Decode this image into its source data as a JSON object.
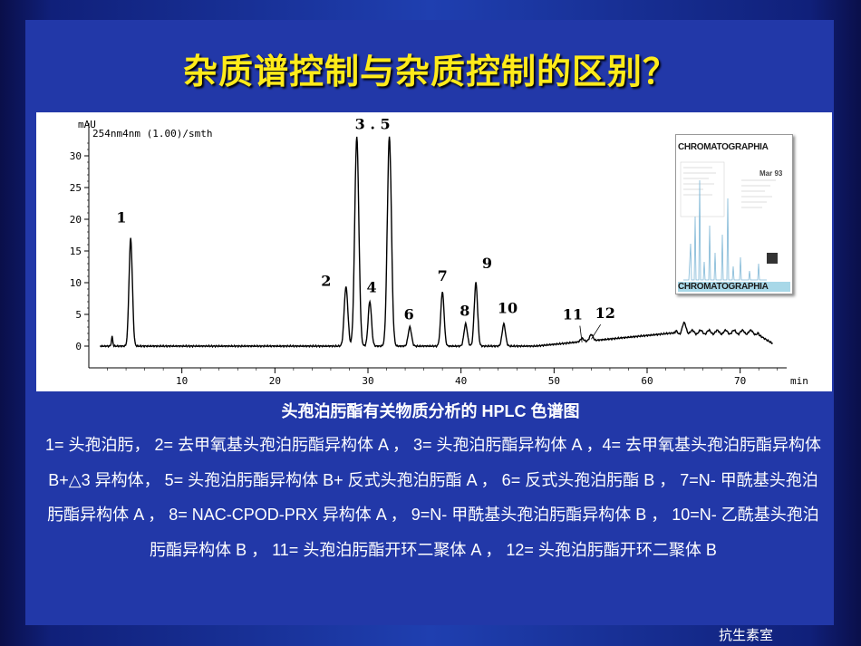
{
  "slide": {
    "title": "杂质谱控制与杂质控制的区别？",
    "caption": "头孢泊肟酯有关物质分析的 HPLC 色谱图",
    "legend": "1= 头孢泊肟， 2= 去甲氧基头孢泊肟酯异构体 A ， 3= 头孢泊肟酯异构体 A ，4= 去甲氧基头孢泊肟酯异构体 B+△3 异构体， 5= 头孢泊肟酯异构体 B+ 反式头孢泊肟酯 A ， 6= 反式头孢泊肟酯 B ， 7=N- 甲酰基头孢泊肟酯异构体 A ， 8= NAC-CPOD-PRX 异构体 A ， 9=N- 甲酰基头孢泊肟酯异构体 B ， 10=N- 乙酰基头孢泊肟酯异构体 B ， 11= 头孢泊肟酯开环二聚体 A ， 12= 头孢泊肟酯开环二聚体 B",
    "watermark": "抗生素室",
    "colors": {
      "title": "#ffeb1a",
      "background": "#2238a8",
      "text": "#ffffff"
    }
  },
  "journal_cover": {
    "title": "CHROMATOGRAPHIA",
    "date": "Mar 93"
  },
  "chart_data": {
    "type": "line",
    "ylabel": "mAU",
    "trace_label": "254nm4nm (1.00)/smth",
    "xlabel": "min",
    "xlim": [
      0,
      75
    ],
    "ylim": [
      0,
      34
    ],
    "x_ticks": [
      10,
      20,
      30,
      40,
      50,
      60,
      70
    ],
    "y_ticks": [
      0,
      5,
      10,
      15,
      20,
      25,
      30
    ],
    "grid": false,
    "peaks": [
      {
        "label": "1",
        "x": 4.5,
        "y": 17
      },
      {
        "label": "2",
        "x": 27.6,
        "y": 8
      },
      {
        "label": "3",
        "x": 28.8,
        "y": 33
      },
      {
        "label": "4",
        "x": 30.2,
        "y": 7
      },
      {
        "label": "5",
        "x": 32.3,
        "y": 33
      },
      {
        "label": "6",
        "x": 34.5,
        "y": 3
      },
      {
        "label": "7",
        "x": 38.0,
        "y": 8.5
      },
      {
        "label": "8",
        "x": 40.5,
        "y": 3.5
      },
      {
        "label": "9",
        "x": 41.6,
        "y": 10
      },
      {
        "label": "10",
        "x": 44.6,
        "y": 3.5
      },
      {
        "label": "11",
        "x": 53.0,
        "y": 0.5
      },
      {
        "label": "12",
        "x": 54.0,
        "y": 1
      }
    ],
    "peak_labels": [
      {
        "text": "1",
        "x": 3.5,
        "y": 19.5
      },
      {
        "text": "2",
        "x": 25.5,
        "y": 9.5
      },
      {
        "text": "3 . 5",
        "x": 30.5,
        "y": 34.2
      },
      {
        "text": "4",
        "x": 30.4,
        "y": 8.5
      },
      {
        "text": "6",
        "x": 34.4,
        "y": 4.2
      },
      {
        "text": "7",
        "x": 38.0,
        "y": 10.3
      },
      {
        "text": "8",
        "x": 40.4,
        "y": 4.8
      },
      {
        "text": "9",
        "x": 42.8,
        "y": 12.3
      },
      {
        "text": "10",
        "x": 45.0,
        "y": 5.2
      },
      {
        "text": "11",
        "x": 52.0,
        "y": 4.2
      },
      {
        "text": "12",
        "x": 55.5,
        "y": 4.4
      }
    ]
  }
}
